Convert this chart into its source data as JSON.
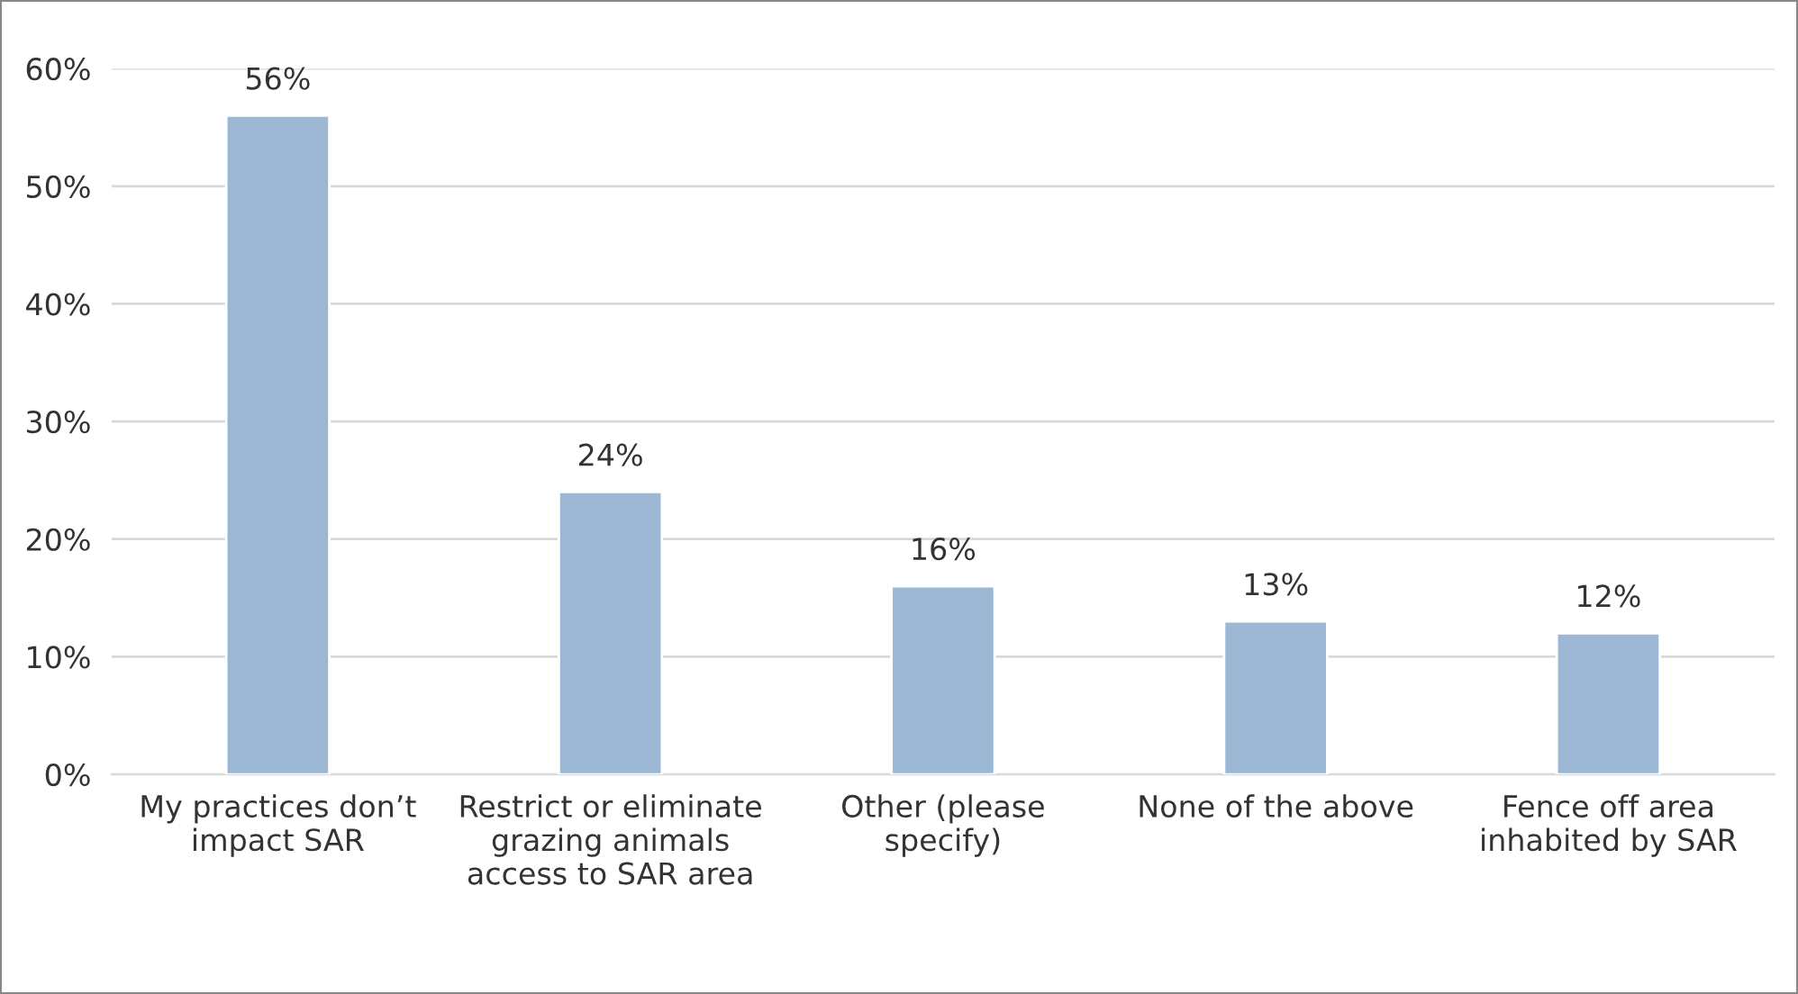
{
  "chart_data": {
    "type": "bar",
    "categories": [
      "My practices don’t\nimpact SAR",
      "Restrict or eliminate\ngrazing animals\naccess to SAR area",
      "Other (please\nspecify)",
      "None of the above",
      "Fence off area\ninhabited by SAR"
    ],
    "values": [
      56,
      24,
      16,
      13,
      12
    ],
    "value_labels": [
      "56%",
      "24%",
      "16%",
      "13%",
      "12%"
    ],
    "color": "#9bb7d4",
    "ylim": [
      0,
      60
    ],
    "yticks": [
      {
        "value": 0,
        "label": "0%"
      },
      {
        "value": 10,
        "label": "10%"
      },
      {
        "value": 20,
        "label": "20%"
      },
      {
        "value": 30,
        "label": "30%"
      },
      {
        "value": 40,
        "label": "40%"
      },
      {
        "value": 50,
        "label": "50%"
      },
      {
        "value": 60,
        "label": "60%"
      }
    ],
    "grid": "y"
  }
}
